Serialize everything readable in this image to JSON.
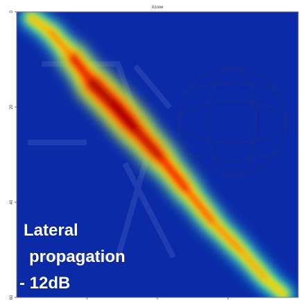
{
  "chart_data": {
    "type": "heatmap",
    "title": "Xzone",
    "colormap": [
      "#0000a8",
      "#0033ff",
      "#00ccff",
      "#ccff33",
      "#ffcc00",
      "#ff3300",
      "#a80000"
    ],
    "background_color": "#0a2aa8",
    "xlabel": "",
    "ylabel": "",
    "yticks": [
      "0",
      "20",
      "40",
      "60"
    ],
    "xticks": [
      "",
      "",
      ""
    ],
    "ylim": [
      0,
      60
    ],
    "grid": false,
    "ridge": [
      {
        "x": 0.05,
        "y": 0.02,
        "intensity": 0.35
      },
      {
        "x": 0.12,
        "y": 0.07,
        "intensity": 0.3
      },
      {
        "x": 0.2,
        "y": 0.16,
        "intensity": 0.55
      },
      {
        "x": 0.27,
        "y": 0.25,
        "intensity": 0.9
      },
      {
        "x": 0.35,
        "y": 0.33,
        "intensity": 1.0
      },
      {
        "x": 0.43,
        "y": 0.42,
        "intensity": 0.95
      },
      {
        "x": 0.52,
        "y": 0.52,
        "intensity": 0.75
      },
      {
        "x": 0.61,
        "y": 0.63,
        "intensity": 0.6
      },
      {
        "x": 0.7,
        "y": 0.74,
        "intensity": 0.45
      },
      {
        "x": 0.8,
        "y": 0.84,
        "intensity": 0.4
      },
      {
        "x": 0.89,
        "y": 0.94,
        "intensity": 0.32
      },
      {
        "x": 0.95,
        "y": 0.99,
        "intensity": 0.25
      }
    ]
  },
  "annotation": {
    "line1": "Lateral",
    "line2": "propagation",
    "line3": "- 12dB"
  }
}
